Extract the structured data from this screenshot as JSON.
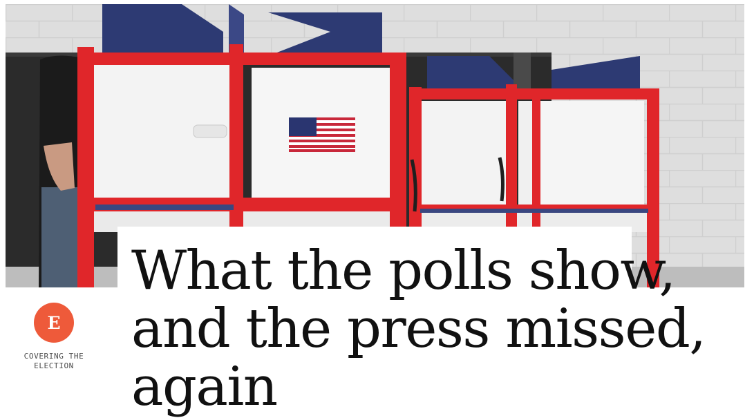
{
  "hero": {
    "image": "voting-booths-photo"
  },
  "section": {
    "badge_letter": "E",
    "label_line1": "COVERING THE",
    "label_line2": "ELECTION"
  },
  "article": {
    "headline_line1": "What the polls show,",
    "headline_line2": "and the press missed,",
    "headline_line3": "again"
  },
  "colors": {
    "badge": "#ee5a3a",
    "booth_frame": "#e0262a",
    "booth_top": "#2d3a73"
  }
}
